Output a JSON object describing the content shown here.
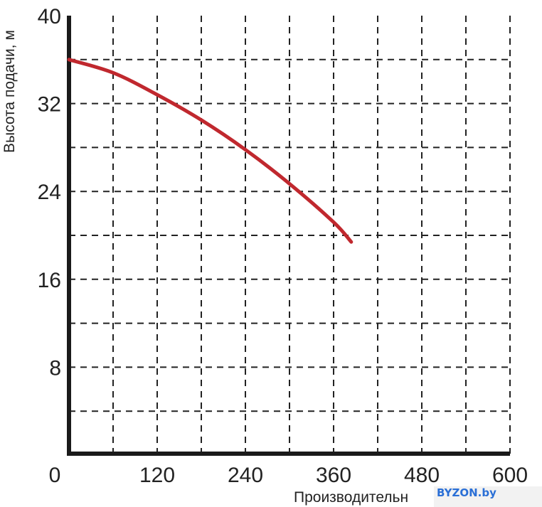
{
  "chart_data": {
    "type": "line",
    "title": "",
    "xlabel": "Производительн",
    "ylabel": "Высота подачи, м",
    "xlim": [
      0,
      600
    ],
    "ylim": [
      0,
      40
    ],
    "x_ticks": [
      0,
      120,
      240,
      360,
      480,
      600
    ],
    "y_ticks": [
      8,
      16,
      24,
      32,
      40
    ],
    "x_grid_step": 60,
    "y_grid_step": 4,
    "grid": "dashed",
    "series": [
      {
        "color": "#c0282e",
        "x": [
          0,
          60,
          120,
          180,
          240,
          300,
          360,
          384
        ],
        "y": [
          36,
          34.8,
          32.8,
          30.5,
          27.8,
          24.7,
          21.2,
          19.4
        ]
      }
    ]
  },
  "watermark": {
    "text": "BYZON.by",
    "color": "#2a6fd6"
  }
}
